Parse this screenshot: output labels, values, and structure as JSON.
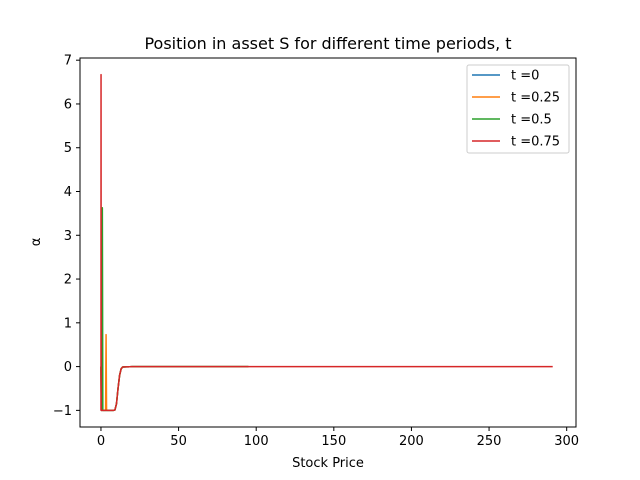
{
  "chart_data": {
    "type": "line",
    "title": "Position in asset S for different time periods, t",
    "xlabel": "Stock Price",
    "ylabel": "α",
    "xlim": [
      -13.5,
      306
    ],
    "ylim": [
      -1.38,
      7.05
    ],
    "xticks": [
      0,
      50,
      100,
      150,
      200,
      250,
      300
    ],
    "yticks": [
      -1,
      0,
      1,
      2,
      3,
      4,
      5,
      6,
      7
    ],
    "grid": false,
    "legend_position": "top-right",
    "series": [
      {
        "name": "t =0",
        "color": "#1f77b4",
        "x": [
          0.01,
          0.3,
          1,
          2,
          4,
          6,
          8,
          9,
          10,
          11,
          12,
          13,
          14,
          20,
          50,
          95
        ],
        "y": [
          0.0,
          -1.0,
          -1.0,
          -1.0,
          -1.0,
          -1.0,
          -1.0,
          -0.99,
          -0.85,
          -0.5,
          -0.2,
          -0.05,
          -0.01,
          0.0,
          0.0,
          0.0
        ]
      },
      {
        "name": "t =0.25",
        "color": "#ff7f0e",
        "x": [
          0.01,
          0.3,
          1,
          2,
          3,
          3.3,
          3.6,
          5,
          6,
          8,
          9,
          10,
          11,
          12,
          13,
          14,
          20,
          50,
          95
        ],
        "y": [
          0.0,
          -1.0,
          -1.0,
          -1.0,
          -1.0,
          0.73,
          -1.0,
          -1.0,
          -1.0,
          -1.0,
          -0.99,
          -0.85,
          -0.5,
          -0.2,
          -0.05,
          -0.01,
          0.0,
          0.0,
          0.0
        ]
      },
      {
        "name": "t =0.5",
        "color": "#2ca02c",
        "x": [
          0.01,
          0.3,
          0.6,
          0.9,
          1.2,
          2,
          4,
          6,
          8,
          9,
          10,
          11,
          12,
          13,
          14,
          20,
          50,
          95
        ],
        "y": [
          0.0,
          -1.0,
          -1.0,
          3.63,
          -1.0,
          -1.0,
          -1.0,
          -1.0,
          -1.0,
          -0.99,
          -0.85,
          -0.5,
          -0.2,
          -0.05,
          -0.01,
          0.0,
          0.0,
          0.0
        ]
      },
      {
        "name": "t =0.75",
        "color": "#d62728",
        "x": [
          0.01,
          0.05,
          0.15,
          0.3,
          0.6,
          1,
          2,
          4,
          6,
          8,
          9,
          10,
          11,
          12,
          13,
          14,
          20,
          50,
          100,
          150,
          200,
          250,
          291
        ],
        "y": [
          -1.0,
          6.67,
          -1.0,
          -1.0,
          -1.0,
          -1.0,
          -1.0,
          -1.0,
          -1.0,
          -1.0,
          -0.99,
          -0.85,
          -0.5,
          -0.2,
          -0.05,
          -0.01,
          0.0,
          0.0,
          0.0,
          0.0,
          0.0,
          0.0,
          0.0
        ]
      }
    ]
  }
}
